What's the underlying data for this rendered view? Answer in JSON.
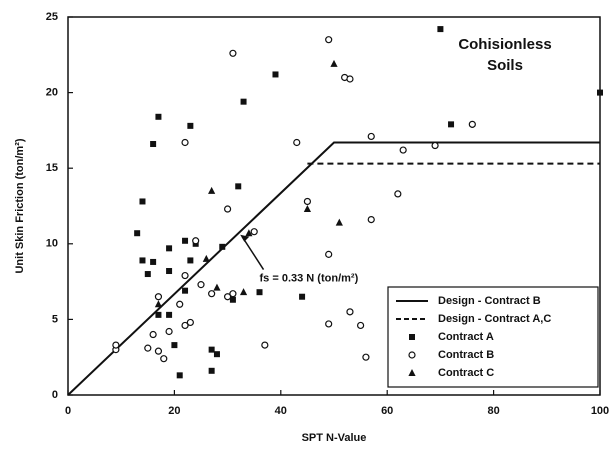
{
  "chart_data": {
    "type": "scatter",
    "title_lines": [
      "Cohisionless",
      "Soils"
    ],
    "xlabel": "SPT N-Value",
    "ylabel": "Unit Skin Friction (ton/m²)",
    "annotation": "fs = 0.33 N (ton/m²)",
    "xlim": [
      0,
      100
    ],
    "ylim": [
      0,
      25
    ],
    "xticks": [
      0,
      20,
      40,
      60,
      80,
      100
    ],
    "yticks": [
      0,
      5,
      10,
      15,
      20,
      25
    ],
    "legend": "lower right",
    "series": [
      {
        "name": "Design - Contract B",
        "type": "line",
        "dash": "solid",
        "color": "#111111",
        "x": [
          0,
          50,
          100
        ],
        "values": [
          0,
          16.7,
          16.7
        ]
      },
      {
        "name": "Design - Contract A,C",
        "type": "line",
        "dash": "dashed",
        "color": "#111111",
        "x": [
          45,
          100
        ],
        "values": [
          15.3,
          15.3
        ]
      },
      {
        "name": "Contract A",
        "type": "scatter",
        "marker": "square",
        "color": "#111111",
        "x": [
          17,
          16,
          23,
          14,
          13,
          14,
          15,
          16,
          19,
          22,
          24,
          23,
          19,
          17,
          19,
          20,
          21,
          27,
          27,
          28,
          31,
          36,
          29,
          32,
          33,
          39,
          44,
          70,
          72,
          100,
          22
        ],
        "values": [
          18.4,
          16.6,
          17.8,
          12.8,
          10.7,
          8.9,
          8.0,
          8.8,
          9.7,
          10.2,
          10.0,
          8.9,
          8.2,
          5.3,
          5.3,
          3.3,
          1.3,
          1.6,
          3.0,
          2.7,
          6.3,
          6.8,
          9.8,
          13.8,
          19.4,
          21.2,
          6.5,
          24.2,
          17.9,
          20.0,
          6.9
        ]
      },
      {
        "name": "Contract B",
        "type": "scatter",
        "marker": "circle",
        "color": "#111111",
        "x": [
          9,
          9,
          15,
          16,
          17,
          18,
          17,
          19,
          21,
          22,
          23,
          22,
          25,
          22,
          27,
          31,
          30,
          30,
          31,
          35,
          37,
          43,
          45,
          49,
          49,
          52,
          53,
          49,
          53,
          55,
          56,
          57,
          57,
          62,
          63,
          69,
          76,
          24
        ],
        "values": [
          3.0,
          3.3,
          3.1,
          4.0,
          2.9,
          2.4,
          6.5,
          4.2,
          6.0,
          4.6,
          4.8,
          7.9,
          7.3,
          16.7,
          6.7,
          22.6,
          12.3,
          6.5,
          6.7,
          10.8,
          3.3,
          16.7,
          12.8,
          9.3,
          4.7,
          21.0,
          20.9,
          23.5,
          5.5,
          4.6,
          2.5,
          11.6,
          17.1,
          13.3,
          16.2,
          16.5,
          17.9,
          10.2
        ]
      },
      {
        "name": "Contract C",
        "type": "scatter",
        "marker": "triangle",
        "color": "#111111",
        "x": [
          27,
          26,
          28,
          34,
          45,
          50,
          51,
          17,
          33
        ],
        "values": [
          13.5,
          9.0,
          7.1,
          10.7,
          12.3,
          21.9,
          11.4,
          6.0,
          6.8
        ]
      }
    ]
  }
}
